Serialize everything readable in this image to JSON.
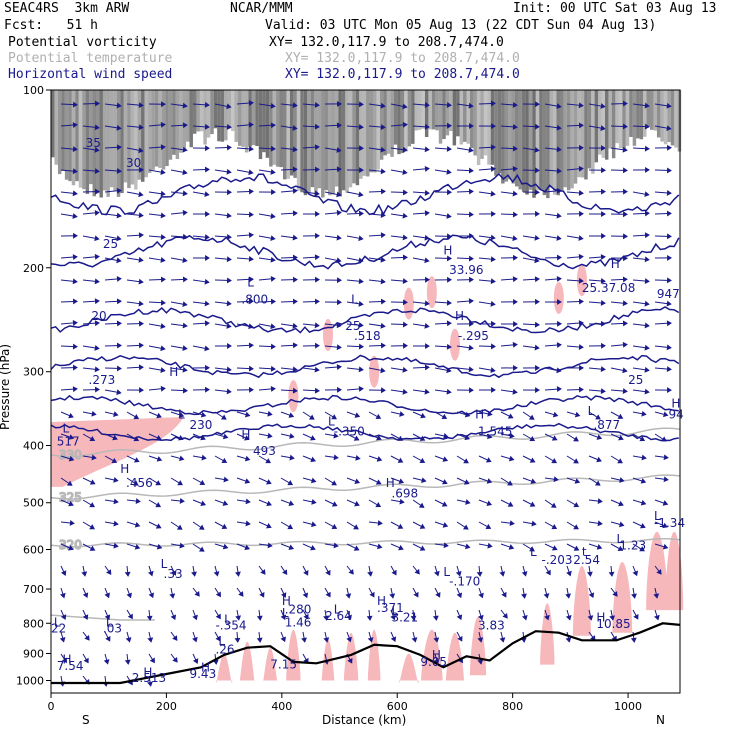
{
  "header": {
    "model": "SEAC4RS  3km ARW",
    "center": "NCAR/MMM",
    "init": "Init: 00 UTC Sat 03 Aug 13",
    "fcst": "Fcst:   51 h",
    "valid": "Valid: 03 UTC Mon 05 Aug 13 (22 CDT Sun 04 Aug 13)",
    "fields": [
      {
        "name": "Potential vorticity",
        "xy": "XY= 132.0,117.9 to 208.7,474.0",
        "color": "#000000"
      },
      {
        "name": "Potential temperature",
        "xy": "XY= 132.0,117.9 to 208.7,474.0",
        "color": "#b0b0b0"
      },
      {
        "name": "Horizontal wind speed",
        "xy": "XY= 132.0,117.9 to 208.7,474.0",
        "color": "#1a1a8c"
      }
    ]
  },
  "colors": {
    "pv_fill": "#f7b8bc",
    "theta_line": "#b8b8b8",
    "wind_line": "#1a1a8c",
    "terrain": "#000000",
    "top_shade": "#555555"
  },
  "chart_data": {
    "type": "cross-section",
    "xlabel": "Distance (km)",
    "ylabel": "Pressure (hPa)",
    "x_ticks": [
      0,
      200,
      400,
      600,
      800,
      1000
    ],
    "y_ticks": [
      100,
      200,
      300,
      400,
      500,
      600,
      700,
      800,
      900,
      1000
    ],
    "xlim": [
      0,
      1090
    ],
    "ylim": [
      1050,
      100
    ],
    "y_scale": "log-pressure",
    "left_end": "S",
    "right_end": "N",
    "theta_contours": [
      {
        "label": "320",
        "pressure_at_left": 590
      },
      {
        "label": "325",
        "pressure_at_left": 490
      },
      {
        "label": "330",
        "pressure_at_left": 415
      }
    ],
    "terrain_pressure": [
      [
        0,
        1010
      ],
      [
        120,
        1010
      ],
      [
        200,
        975
      ],
      [
        260,
        950
      ],
      [
        300,
        905
      ],
      [
        340,
        880
      ],
      [
        380,
        875
      ],
      [
        420,
        930
      ],
      [
        460,
        935
      ],
      [
        520,
        905
      ],
      [
        560,
        870
      ],
      [
        600,
        875
      ],
      [
        640,
        905
      ],
      [
        680,
        950
      ],
      [
        720,
        910
      ],
      [
        760,
        925
      ],
      [
        800,
        865
      ],
      [
        840,
        825
      ],
      [
        880,
        830
      ],
      [
        920,
        855
      ],
      [
        980,
        855
      ],
      [
        1020,
        830
      ],
      [
        1060,
        800
      ],
      [
        1090,
        805
      ]
    ],
    "annotations": [
      {
        "text": "H",
        "x": 205,
        "y": 305
      },
      {
        "text": ".273",
        "x": 65,
        "y": 315
      },
      {
        "text": "L",
        "x": 220,
        "y": 360
      },
      {
        "text": "230",
        "x": 240,
        "y": 375
      },
      {
        "text": "L",
        "x": 20,
        "y": 380
      },
      {
        "text": "517",
        "x": 10,
        "y": 400
      },
      {
        "text": "H",
        "x": 330,
        "y": 390
      },
      {
        "text": "493",
        "x": 350,
        "y": 415
      },
      {
        "text": "H",
        "x": 120,
        "y": 445
      },
      {
        "text": ".456",
        "x": 130,
        "y": 470
      },
      {
        "text": "L",
        "x": 480,
        "y": 370
      },
      {
        "text": "-.350",
        "x": 490,
        "y": 385
      },
      {
        "text": "H",
        "x": 735,
        "y": 360
      },
      {
        "text": "1.545",
        "x": 740,
        "y": 385
      },
      {
        "text": "H",
        "x": 580,
        "y": 470
      },
      {
        "text": ".698",
        "x": 590,
        "y": 490
      },
      {
        "text": "L",
        "x": 930,
        "y": 355
      },
      {
        "text": ".877",
        "x": 940,
        "y": 375
      },
      {
        "text": "H",
        "x": 1075,
        "y": 345
      },
      {
        "text": "94",
        "x": 1070,
        "y": 360
      },
      {
        "text": "L",
        "x": 190,
        "y": 645
      },
      {
        "text": ".33",
        "x": 195,
        "y": 670
      },
      {
        "text": "L",
        "x": 680,
        "y": 665
      },
      {
        "text": "-.170",
        "x": 690,
        "y": 690
      },
      {
        "text": "L",
        "x": 830,
        "y": 615
      },
      {
        "text": "-.203",
        "x": 850,
        "y": 635
      },
      {
        "text": "t",
        "x": 920,
        "y": 615
      },
      {
        "text": "2.54",
        "x": 905,
        "y": 635
      },
      {
        "text": "L",
        "x": 980,
        "y": 585
      },
      {
        "text": "1.23",
        "x": 985,
        "y": 600
      },
      {
        "text": "L",
        "x": 1045,
        "y": 535
      },
      {
        "text": "-1.34",
        "x": 1045,
        "y": 550
      },
      {
        "text": "H",
        "x": 400,
        "y": 745
      },
      {
        "text": ".280",
        "x": 405,
        "y": 770
      },
      {
        "text": "L",
        "x": 400,
        "y": 780
      },
      {
        "text": "1.46",
        "x": 405,
        "y": 810
      },
      {
        "text": "L",
        "x": 490,
        "y": 770
      },
      {
        "text": "2.64",
        "x": 475,
        "y": 790
      },
      {
        "text": "H",
        "x": 565,
        "y": 745
      },
      {
        "text": ".371",
        "x": 565,
        "y": 765
      },
      {
        "text": "L",
        "x": 590,
        "y": 775
      },
      {
        "text": "3.21",
        "x": 590,
        "y": 795
      },
      {
        "text": "L",
        "x": 300,
        "y": 800
      },
      {
        "text": "-.354",
        "x": 285,
        "y": 820
      },
      {
        "text": "L",
        "x": 5,
        "y": 810
      },
      {
        "text": "22",
        "x": 0,
        "y": 830
      },
      {
        "text": "L",
        "x": 95,
        "y": 810
      },
      {
        "text": ".03",
        "x": 90,
        "y": 830
      },
      {
        "text": "H",
        "x": 945,
        "y": 795
      },
      {
        "text": "10.85",
        "x": 945,
        "y": 815
      },
      {
        "text": "3.83",
        "x": 740,
        "y": 820
      },
      {
        "text": "L",
        "x": 290,
        "y": 870
      },
      {
        "text": ".26",
        "x": 285,
        "y": 900
      },
      {
        "text": "H",
        "x": 20,
        "y": 935
      },
      {
        "text": "7.54",
        "x": 10,
        "y": 960
      },
      {
        "text": "H",
        "x": 660,
        "y": 920
      },
      {
        "text": "9.05",
        "x": 640,
        "y": 945
      },
      {
        "text": "7.15",
        "x": 380,
        "y": 955
      },
      {
        "text": "H",
        "x": 260,
        "y": 965
      },
      {
        "text": "H",
        "x": 160,
        "y": 985
      },
      {
        "text": "2.513",
        "x": 140,
        "y": 1005
      },
      {
        "text": "9.43",
        "x": 240,
        "y": 990
      },
      {
        "text": "H",
        "x": 680,
        "y": 190
      },
      {
        "text": "33.96",
        "x": 690,
        "y": 205
      },
      {
        "text": "H",
        "x": 970,
        "y": 200
      },
      {
        "text": "25.37.08",
        "x": 920,
        "y": 220
      },
      {
        "text": "947",
        "x": 1050,
        "y": 225
      },
      {
        "text": "L",
        "x": 340,
        "y": 215
      },
      {
        "text": ".800",
        "x": 330,
        "y": 230
      },
      {
        "text": "L",
        "x": 520,
        "y": 230
      },
      {
        "text": "25",
        "x": 510,
        "y": 255
      },
      {
        "text": ".518",
        "x": 525,
        "y": 265
      },
      {
        "text": "H",
        "x": 700,
        "y": 245
      },
      {
        "text": "-.295",
        "x": 705,
        "y": 265
      },
      {
        "text": "25",
        "x": 1000,
        "y": 315
      },
      {
        "text": "25",
        "x": 90,
        "y": 185
      },
      {
        "text": "20",
        "x": 70,
        "y": 245
      },
      {
        "text": "30",
        "x": 130,
        "y": 135
      },
      {
        "text": "35",
        "x": 60,
        "y": 125
      }
    ]
  }
}
